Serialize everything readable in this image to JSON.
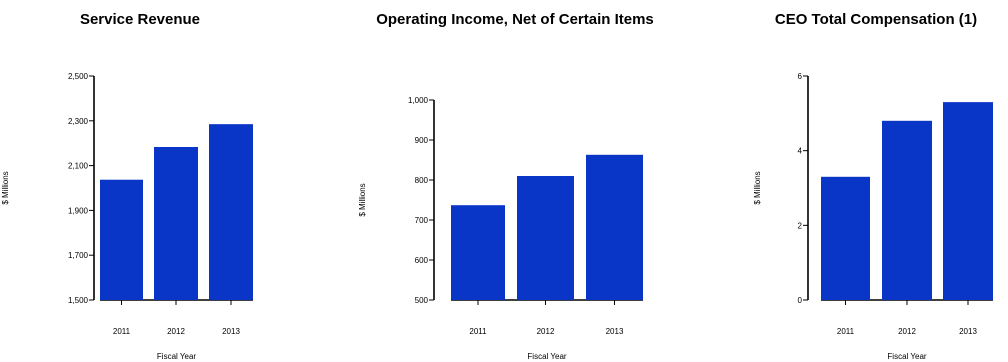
{
  "colors": {
    "bar": "#0a36c8",
    "axis": "#000000"
  },
  "chart_data": [
    {
      "type": "bar",
      "title": "Service Revenue",
      "categories": [
        "2011",
        "2012",
        "2013"
      ],
      "values": [
        2037,
        2183,
        2285
      ],
      "xlabel": "Fiscal Year",
      "ylabel": "$ Millions",
      "ylim": [
        1500,
        2500
      ],
      "yticks": [
        1500,
        1700,
        1900,
        2100,
        2300,
        2500
      ],
      "ytick_labels": [
        "1,500",
        "1,700",
        "1,900",
        "2,100",
        "2,300",
        "2,500"
      ],
      "grid": false
    },
    {
      "type": "bar",
      "title": "Operating Income, Net of Certain Items",
      "categories": [
        "2011",
        "2012",
        "2013"
      ],
      "values": [
        737,
        810,
        863
      ],
      "xlabel": "Fiscal Year",
      "ylabel": "$ Millions",
      "ylim": [
        500,
        1000
      ],
      "yticks": [
        500,
        600,
        700,
        800,
        900,
        1000
      ],
      "ytick_labels": [
        "500",
        "600",
        "700",
        "800",
        "900",
        "1,000"
      ],
      "grid": false
    },
    {
      "type": "bar",
      "title": "CEO Total Compensation (1)",
      "categories": [
        "2011",
        "2012",
        "2013"
      ],
      "values": [
        3.3,
        4.8,
        5.3
      ],
      "xlabel": "Fiscal Year",
      "ylabel": "$ Millions",
      "ylim": [
        0,
        6
      ],
      "yticks": [
        0,
        2,
        4,
        6
      ],
      "ytick_labels": [
        "0",
        "2",
        "4",
        "6"
      ],
      "grid": false
    }
  ]
}
